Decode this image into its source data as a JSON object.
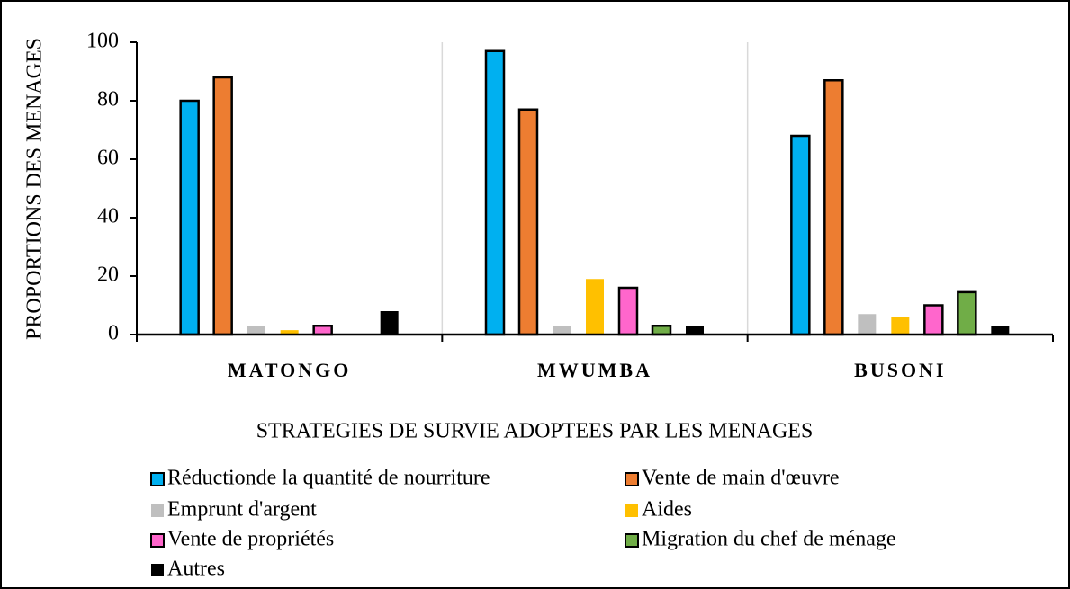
{
  "chart_data": {
    "type": "bar",
    "xlabel": "STRATEGIES DE SURVIE ADOPTEES PAR LES MENAGES",
    "ylabel": "PROPORTIONS DES MENAGES",
    "categories": [
      "MATONGO",
      "MWUMBA",
      "BUSONI"
    ],
    "ylim": [
      0,
      100
    ],
    "yticks": [
      0,
      20,
      40,
      60,
      80,
      100
    ],
    "grid": "x",
    "series": [
      {
        "name": "Réductionde la quantité de nourriture",
        "color": "#00b0f0",
        "edgecolor": "#000000",
        "values": [
          80,
          97,
          68
        ]
      },
      {
        "name": "Vente de main d'œuvre",
        "color": "#ed7d31",
        "edgecolor": "#000000",
        "values": [
          88,
          77,
          87
        ]
      },
      {
        "name": "Emprunt d'argent",
        "color": "#bfbfbf",
        "edgecolor": null,
        "values": [
          3,
          3,
          7
        ]
      },
      {
        "name": "Aides",
        "color": "#ffc000",
        "edgecolor": null,
        "values": [
          1.5,
          19,
          6
        ]
      },
      {
        "name": "Vente de propriétés",
        "color": "#ff66cc",
        "edgecolor": "#000000",
        "values": [
          3,
          16,
          10
        ]
      },
      {
        "name": "Migration du chef de ménage",
        "color": "#70ad47",
        "edgecolor": "#000000",
        "values": [
          0,
          3,
          14.5
        ]
      },
      {
        "name": "Autres",
        "color": "#000000",
        "edgecolor": null,
        "values": [
          8,
          3,
          3
        ]
      }
    ]
  }
}
